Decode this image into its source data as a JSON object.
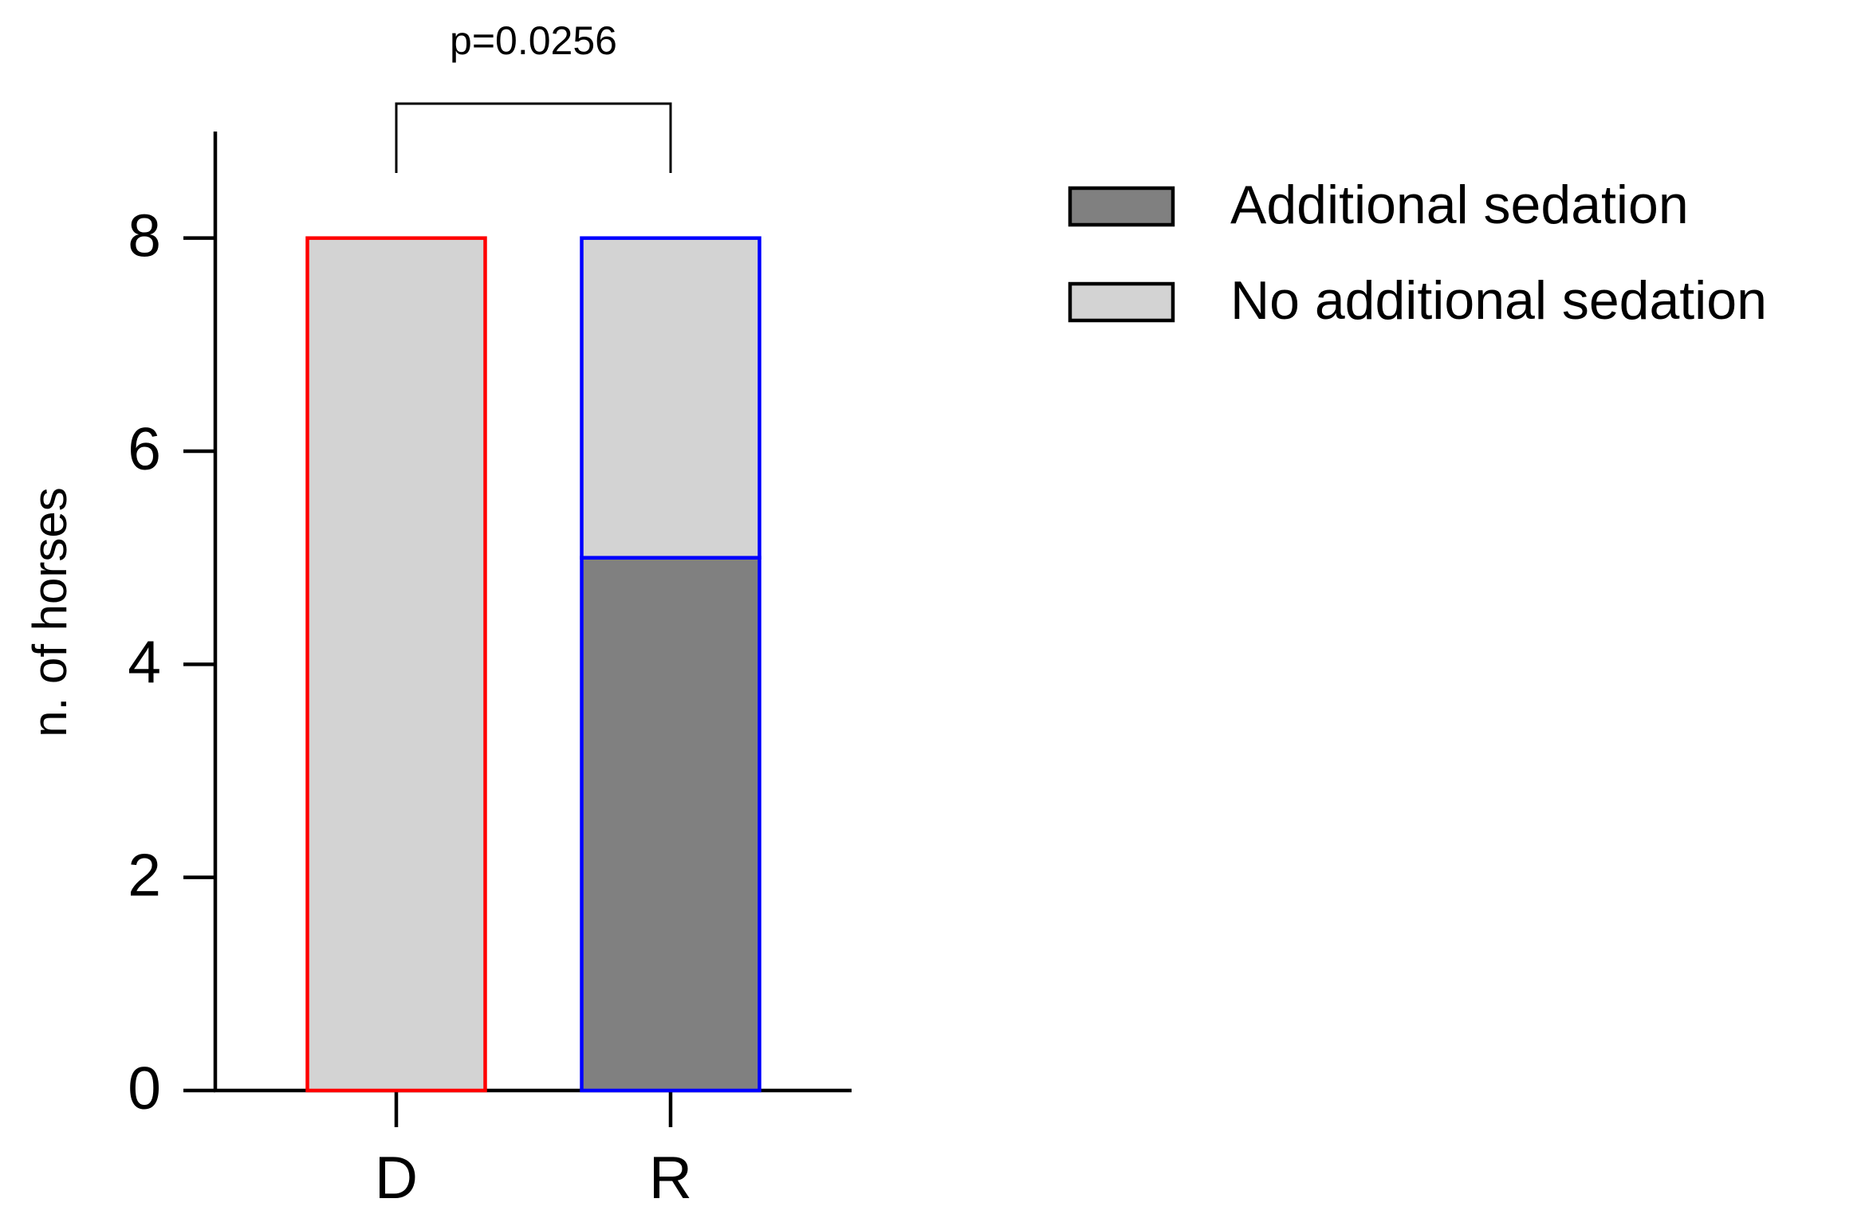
{
  "chart_data": {
    "type": "stacked_bar",
    "annotation": "p=0.0256",
    "y_label": "n. of horses",
    "categories": [
      "D",
      "R"
    ],
    "edge_colors": [
      "#ff0000",
      "#0000ff"
    ],
    "series": [
      {
        "name": "Additional sedation",
        "color": "#808080",
        "values": [
          0,
          5
        ]
      },
      {
        "name": "No additional sedation",
        "color": "#d3d3d3",
        "values": [
          8,
          3
        ]
      }
    ],
    "ylim": [
      0,
      9
    ],
    "yticks": [
      0,
      2,
      4,
      6,
      8
    ],
    "legend": "upper right"
  }
}
